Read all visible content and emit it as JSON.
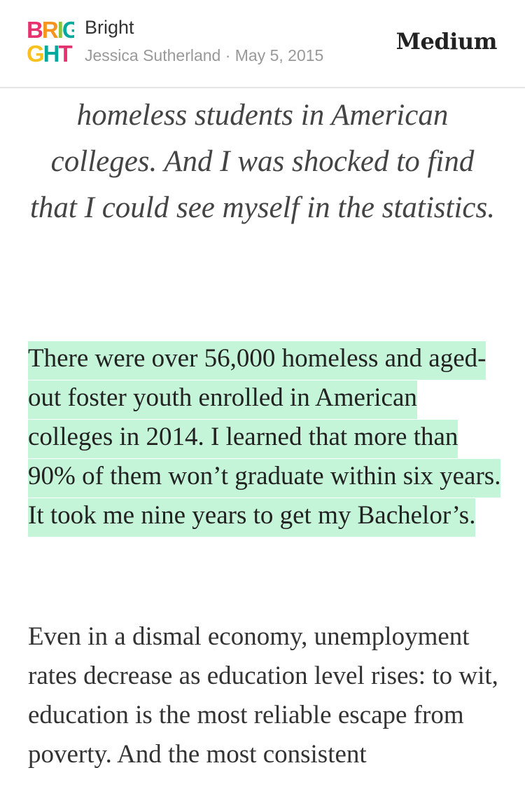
{
  "header": {
    "logo_row1": "BRIG",
    "logo_row2": "GHT",
    "logo_colors": [
      "#e6336f",
      "#f7941d",
      "#8cc63f",
      "#00a99d",
      "#2e3192"
    ],
    "publication": "Bright",
    "byline": "Jessica Sutherland · May 5, 2015",
    "brand": "Medium"
  },
  "article": {
    "pullquote": "homeless students in American colleges. And I was shocked to find that I could see myself in the statistics.",
    "highlighted_paragraph": "There were over 56,000 homeless and aged-out foster youth enrolled in American colleges in 2014. I learned that more than 90% of them won’t graduate within six years. It took me nine years to get my Bachelor’s.",
    "paragraph": "Even in a dismal economy, unemployment rates decrease as education level rises: to wit, education is the most reliable escape from poverty. And the most consistent",
    "highlight_color": "#c5f5d8"
  }
}
